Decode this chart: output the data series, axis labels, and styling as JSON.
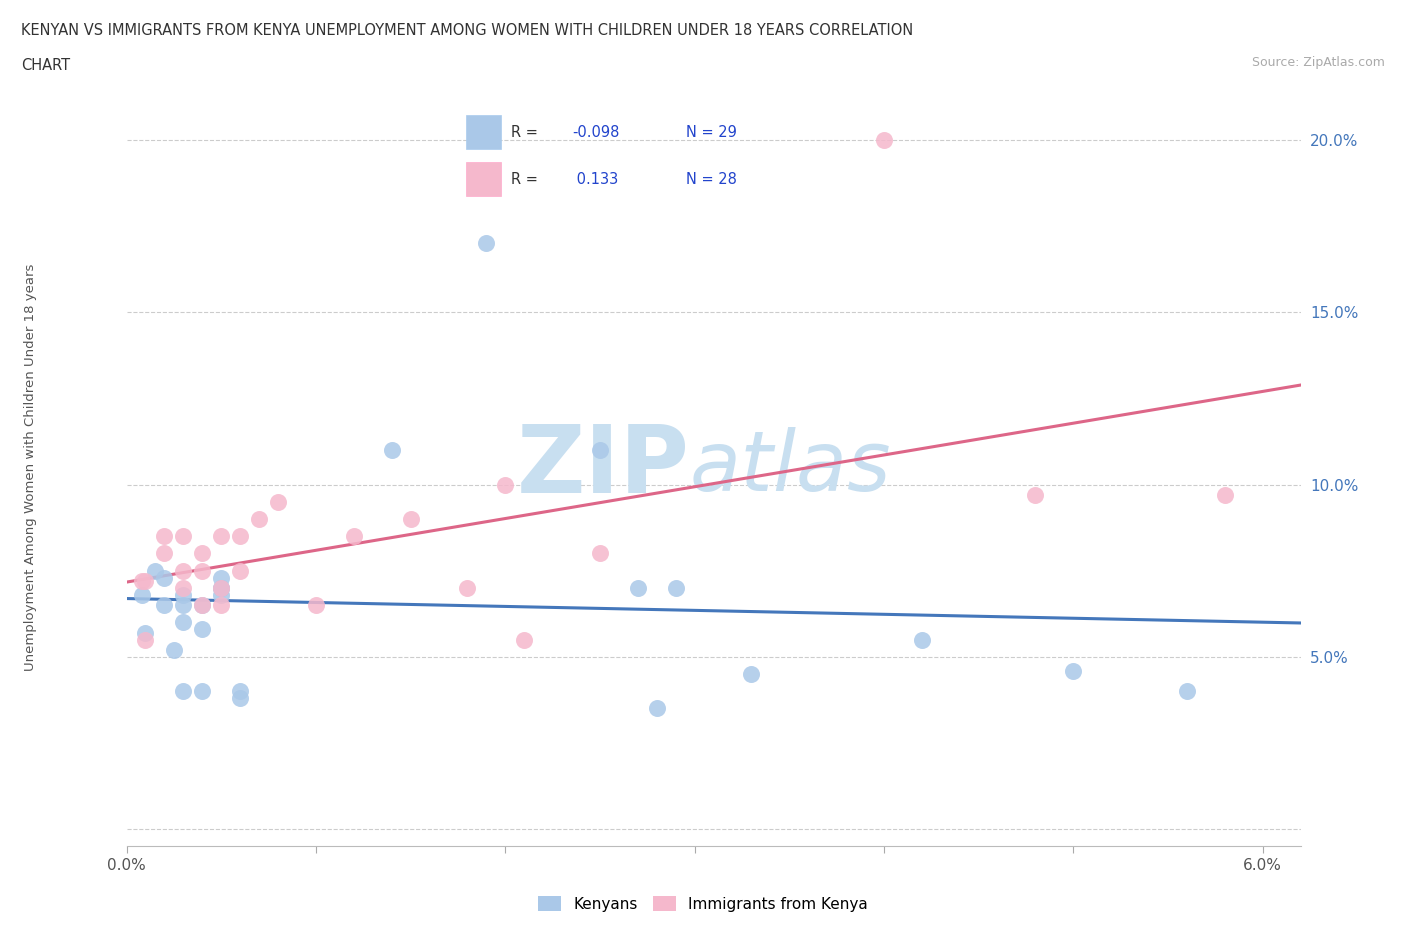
{
  "title_line1": "KENYAN VS IMMIGRANTS FROM KENYA UNEMPLOYMENT AMONG WOMEN WITH CHILDREN UNDER 18 YEARS CORRELATION",
  "title_line2": "CHART",
  "source": "Source: ZipAtlas.com",
  "ylabel": "Unemployment Among Women with Children Under 18 years",
  "xlim": [
    0.0,
    0.062
  ],
  "ylim": [
    -0.005,
    0.215
  ],
  "xtick_positions": [
    0.0,
    0.01,
    0.02,
    0.03,
    0.04,
    0.05,
    0.06
  ],
  "xticklabels": [
    "0.0%",
    "",
    "",
    "",
    "",
    "",
    "6.0%"
  ],
  "ytick_positions": [
    0.0,
    0.05,
    0.1,
    0.15,
    0.2
  ],
  "yticklabels": [
    "",
    "5.0%",
    "10.0%",
    "15.0%",
    "20.0%"
  ],
  "r_kenyan": -0.098,
  "n_kenyan": 29,
  "r_immigrant": 0.133,
  "n_immigrant": 28,
  "kenyan_color": "#aac8e8",
  "immigrant_color": "#f5b8cc",
  "kenyan_line_color": "#4477bb",
  "immigrant_line_color": "#dd6688",
  "legend_r_color": "#2244cc",
  "legend_n_color": "#2244cc",
  "background_color": "#ffffff",
  "watermark_color": "#d5e8f5",
  "kenyan_x": [
    0.0008,
    0.001,
    0.0015,
    0.002,
    0.002,
    0.0025,
    0.003,
    0.003,
    0.003,
    0.003,
    0.004,
    0.004,
    0.004,
    0.005,
    0.005,
    0.005,
    0.005,
    0.006,
    0.006,
    0.014,
    0.019,
    0.025,
    0.027,
    0.028,
    0.029,
    0.033,
    0.042,
    0.05,
    0.056
  ],
  "kenyan_y": [
    0.068,
    0.057,
    0.075,
    0.073,
    0.065,
    0.052,
    0.06,
    0.068,
    0.065,
    0.04,
    0.065,
    0.058,
    0.04,
    0.073,
    0.07,
    0.068,
    0.07,
    0.038,
    0.04,
    0.11,
    0.17,
    0.11,
    0.07,
    0.035,
    0.07,
    0.045,
    0.055,
    0.046,
    0.04
  ],
  "immigrant_x": [
    0.0008,
    0.001,
    0.001,
    0.002,
    0.002,
    0.003,
    0.003,
    0.003,
    0.004,
    0.004,
    0.004,
    0.005,
    0.005,
    0.005,
    0.006,
    0.006,
    0.007,
    0.008,
    0.01,
    0.012,
    0.015,
    0.018,
    0.02,
    0.021,
    0.025,
    0.04,
    0.048,
    0.058
  ],
  "immigrant_y": [
    0.072,
    0.072,
    0.055,
    0.085,
    0.08,
    0.085,
    0.075,
    0.07,
    0.075,
    0.08,
    0.065,
    0.085,
    0.07,
    0.065,
    0.085,
    0.075,
    0.09,
    0.095,
    0.065,
    0.085,
    0.09,
    0.07,
    0.1,
    0.055,
    0.08,
    0.2,
    0.097,
    0.097
  ]
}
